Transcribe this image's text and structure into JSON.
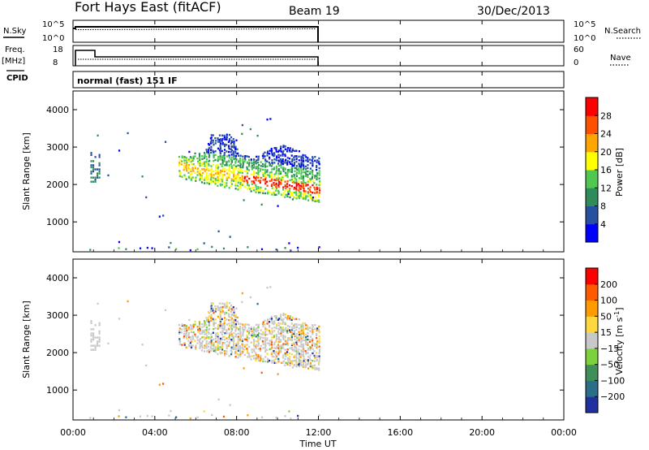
{
  "header": {
    "title": "Fort Hays East (fitACF)",
    "beam": "Beam 19",
    "date": "30/Dec/2013"
  },
  "strips": {
    "nsky_label": "N.Sky",
    "nsky_ticks": [
      "10^5",
      "10^0"
    ],
    "nsearch_label": "N.Search",
    "nsearch_ticks": [
      "10^5",
      "10^0"
    ],
    "freq_label": "Freq.",
    "freq_unit": "[MHz]",
    "freq_ticks": [
      "18",
      "8"
    ],
    "nave_label": "Nave",
    "nave_ticks": [
      "60",
      "0"
    ],
    "cpid_label": "CPID",
    "cpid_text": "normal (fast) 151 IF"
  },
  "chart_data": [
    {
      "type": "heatmap",
      "name": "power",
      "ylabel": "Slant Range [km]",
      "y_ticks": [
        "1000",
        "2000",
        "3000",
        "4000"
      ],
      "colorbar_label": "Power [dB]",
      "colorbar_ticks": [
        "4",
        "8",
        "12",
        "16",
        "20",
        "24",
        "28"
      ],
      "colors": [
        "#0000ff",
        "#2850a0",
        "#2e8c5a",
        "#50c850",
        "#ffff00",
        "#ffa500",
        "#ff5000",
        "#ff0000"
      ],
      "ylim": [
        200,
        4500
      ]
    },
    {
      "type": "heatmap",
      "name": "velocity",
      "ylabel": "Slant Range [km]",
      "y_ticks": [
        "1000",
        "2000",
        "3000",
        "4000"
      ],
      "colorbar_label": "Velocity [m s",
      "colorbar_label_sup": "-1",
      "colorbar_label_end": "]",
      "colorbar_ticks": [
        "200",
        "100",
        "50",
        "15",
        "−15",
        "−50",
        "−100",
        "−200"
      ],
      "colors": [
        "#2030a0",
        "#2a6e8a",
        "#3f8f5a",
        "#7cd23c",
        "#c8c8c8",
        "#ffd840",
        "#ff9a00",
        "#ff5a00",
        "#ff0000"
      ],
      "ylim": [
        200,
        4500
      ]
    }
  ],
  "xaxis": {
    "label": "Time UT",
    "ticks": [
      "00:00",
      "04:00",
      "08:00",
      "12:00",
      "16:00",
      "20:00",
      "00:00"
    ]
  }
}
